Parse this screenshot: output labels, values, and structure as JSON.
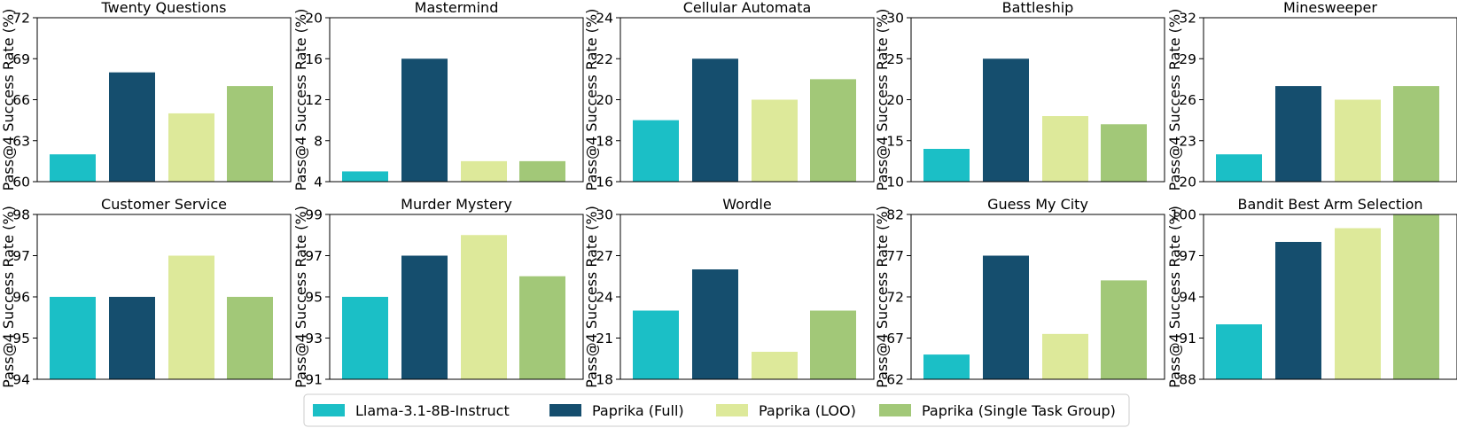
{
  "colors": {
    "Llama-3.1-8B-Instruct": "#1bbfc6",
    "Paprika (Full)": "#154e6e",
    "Paprika (LOO)": "#dde99a",
    "Paprika (Single Task Group)": "#a2c878"
  },
  "legend": {
    "items": [
      "Llama-3.1-8B-Instruct",
      "Paprika (Full)",
      "Paprika (LOO)",
      "Paprika (Single Task Group)"
    ]
  },
  "chart_data": [
    {
      "type": "bar",
      "title": "Twenty Questions",
      "ylabel": "Pass@4 Success Rate (%)",
      "ylim": [
        60,
        72
      ],
      "yticks": [
        60,
        63,
        66,
        69,
        72
      ],
      "categories": [
        "Llama-3.1-8B-Instruct",
        "Paprika (Full)",
        "Paprika (LOO)",
        "Paprika (Single Task Group)"
      ],
      "values": [
        62,
        68,
        65,
        67
      ]
    },
    {
      "type": "bar",
      "title": "Mastermind",
      "ylabel": "Pass@4 Success Rate (%)",
      "ylim": [
        4,
        20
      ],
      "yticks": [
        4,
        8,
        12,
        16,
        20
      ],
      "categories": [
        "Llama-3.1-8B-Instruct",
        "Paprika (Full)",
        "Paprika (LOO)",
        "Paprika (Single Task Group)"
      ],
      "values": [
        5,
        16,
        6,
        6
      ]
    },
    {
      "type": "bar",
      "title": "Cellular Automata",
      "ylabel": "Pass@4 Success Rate (%)",
      "ylim": [
        16,
        24
      ],
      "yticks": [
        16,
        18,
        20,
        22,
        24
      ],
      "categories": [
        "Llama-3.1-8B-Instruct",
        "Paprika (Full)",
        "Paprika (LOO)",
        "Paprika (Single Task Group)"
      ],
      "values": [
        19,
        22,
        20,
        21
      ]
    },
    {
      "type": "bar",
      "title": "Battleship",
      "ylabel": "Pass@4 Success Rate (%)",
      "ylim": [
        10,
        30
      ],
      "yticks": [
        10,
        15,
        20,
        25,
        30
      ],
      "categories": [
        "Llama-3.1-8B-Instruct",
        "Paprika (Full)",
        "Paprika (LOO)",
        "Paprika (Single Task Group)"
      ],
      "values": [
        14,
        25,
        18,
        17
      ]
    },
    {
      "type": "bar",
      "title": "Minesweeper",
      "ylabel": "Pass@4 Success Rate (%)",
      "ylim": [
        20,
        32
      ],
      "yticks": [
        20,
        23,
        26,
        29,
        32
      ],
      "categories": [
        "Llama-3.1-8B-Instruct",
        "Paprika (Full)",
        "Paprika (LOO)",
        "Paprika (Single Task Group)"
      ],
      "values": [
        22,
        27,
        26,
        27
      ]
    },
    {
      "type": "bar",
      "title": "Customer Service",
      "ylabel": "Pass@4 Success Rate (%)",
      "ylim": [
        94,
        98
      ],
      "yticks": [
        94,
        95,
        96,
        97,
        98
      ],
      "categories": [
        "Llama-3.1-8B-Instruct",
        "Paprika (Full)",
        "Paprika (LOO)",
        "Paprika (Single Task Group)"
      ],
      "values": [
        96,
        96,
        97,
        96
      ]
    },
    {
      "type": "bar",
      "title": "Murder Mystery",
      "ylabel": "Pass@4 Success Rate (%)",
      "ylim": [
        91,
        99
      ],
      "yticks": [
        91,
        93,
        95,
        97,
        99
      ],
      "categories": [
        "Llama-3.1-8B-Instruct",
        "Paprika (Full)",
        "Paprika (LOO)",
        "Paprika (Single Task Group)"
      ],
      "values": [
        95,
        97,
        98,
        96
      ]
    },
    {
      "type": "bar",
      "title": "Wordle",
      "ylabel": "Pass@4 Success Rate (%)",
      "ylim": [
        18,
        30
      ],
      "yticks": [
        18,
        21,
        24,
        27,
        30
      ],
      "categories": [
        "Llama-3.1-8B-Instruct",
        "Paprika (Full)",
        "Paprika (LOO)",
        "Paprika (Single Task Group)"
      ],
      "values": [
        23,
        26,
        20,
        23
      ]
    },
    {
      "type": "bar",
      "title": "Guess My City",
      "ylabel": "Pass@4 Success Rate (%)",
      "ylim": [
        62,
        82
      ],
      "yticks": [
        62,
        67,
        72,
        77,
        82
      ],
      "categories": [
        "Llama-3.1-8B-Instruct",
        "Paprika (Full)",
        "Paprika (LOO)",
        "Paprika (Single Task Group)"
      ],
      "values": [
        65,
        77,
        67.5,
        74
      ]
    },
    {
      "type": "bar",
      "title": "Bandit Best Arm Selection",
      "ylabel": "Pass@4 Success Rate (%)",
      "ylim": [
        88,
        100
      ],
      "yticks": [
        88,
        91,
        94,
        97,
        100
      ],
      "categories": [
        "Llama-3.1-8B-Instruct",
        "Paprika (Full)",
        "Paprika (LOO)",
        "Paprika (Single Task Group)"
      ],
      "values": [
        92,
        98,
        99,
        100
      ]
    }
  ]
}
